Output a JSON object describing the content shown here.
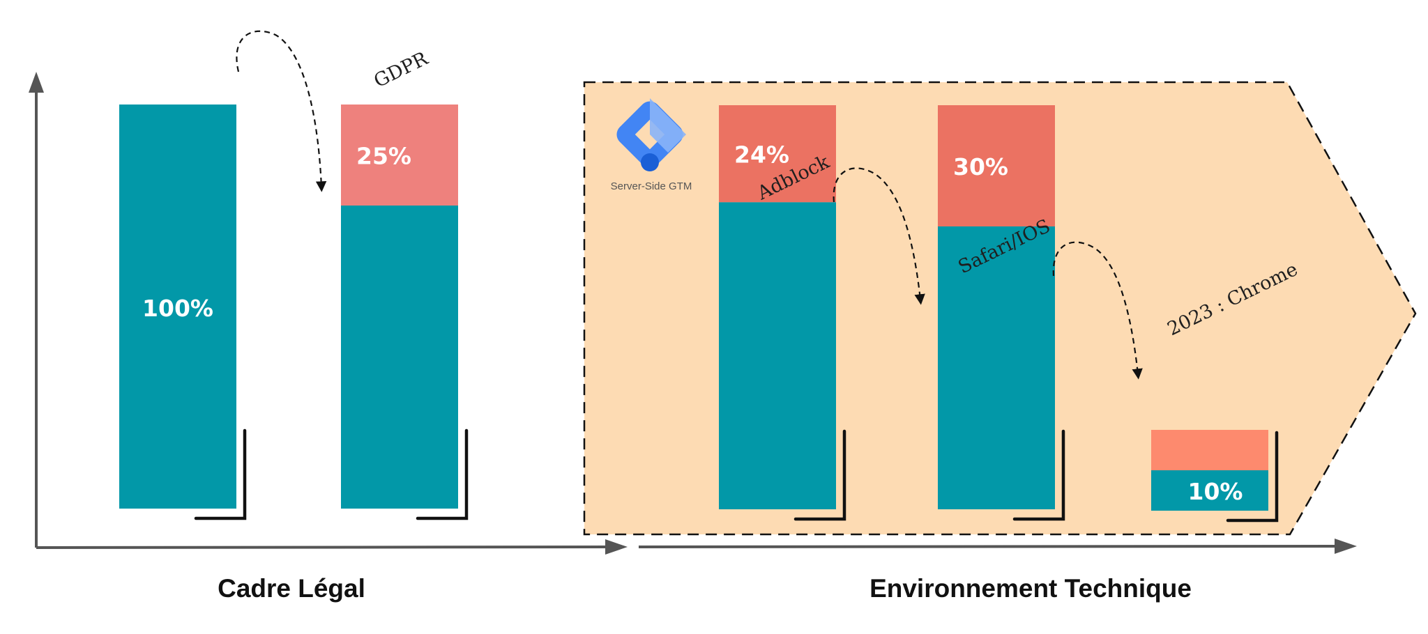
{
  "chart_data": {
    "type": "bar",
    "stacked": true,
    "y_unit": "%",
    "ylim": [
      0,
      100
    ],
    "grid": false,
    "sections": [
      {
        "name": "Cadre Légal",
        "bar_indices": [
          0,
          1
        ]
      },
      {
        "name": "Environnement Technique",
        "bar_indices": [
          2,
          3,
          4
        ]
      }
    ],
    "bars": [
      {
        "annotation": "",
        "loss_value": 0,
        "loss_label": "",
        "remaining_value": 100,
        "remaining_label": "100%",
        "label_on": "remaining"
      },
      {
        "annotation": "GDPR",
        "loss_value": 25,
        "loss_label": "25%",
        "remaining_value": 75,
        "remaining_label": "",
        "label_on": "loss"
      },
      {
        "annotation": "Adblock",
        "loss_value": 24,
        "loss_label": "24%",
        "remaining_value": 76,
        "remaining_label": "",
        "label_on": "loss"
      },
      {
        "annotation": "Safari/IOS",
        "loss_value": 30,
        "loss_label": "30%",
        "remaining_value": 70,
        "remaining_label": "",
        "label_on": "loss"
      },
      {
        "annotation": "2023 : Chrome",
        "loss_value": 10,
        "loss_label": "",
        "remaining_value": 10,
        "remaining_label": "10%",
        "label_on": "remaining"
      }
    ],
    "colors": {
      "remaining": "#0298a8",
      "loss_gdpr": "#ee817d",
      "loss": "#eb7262",
      "loss_chrome": "#fd8a6e",
      "tech_panel": "#fddbb3",
      "axis": "#555555"
    }
  },
  "logo": {
    "caption": "Server-Side GTM",
    "icon": "google-tag-manager-icon"
  }
}
